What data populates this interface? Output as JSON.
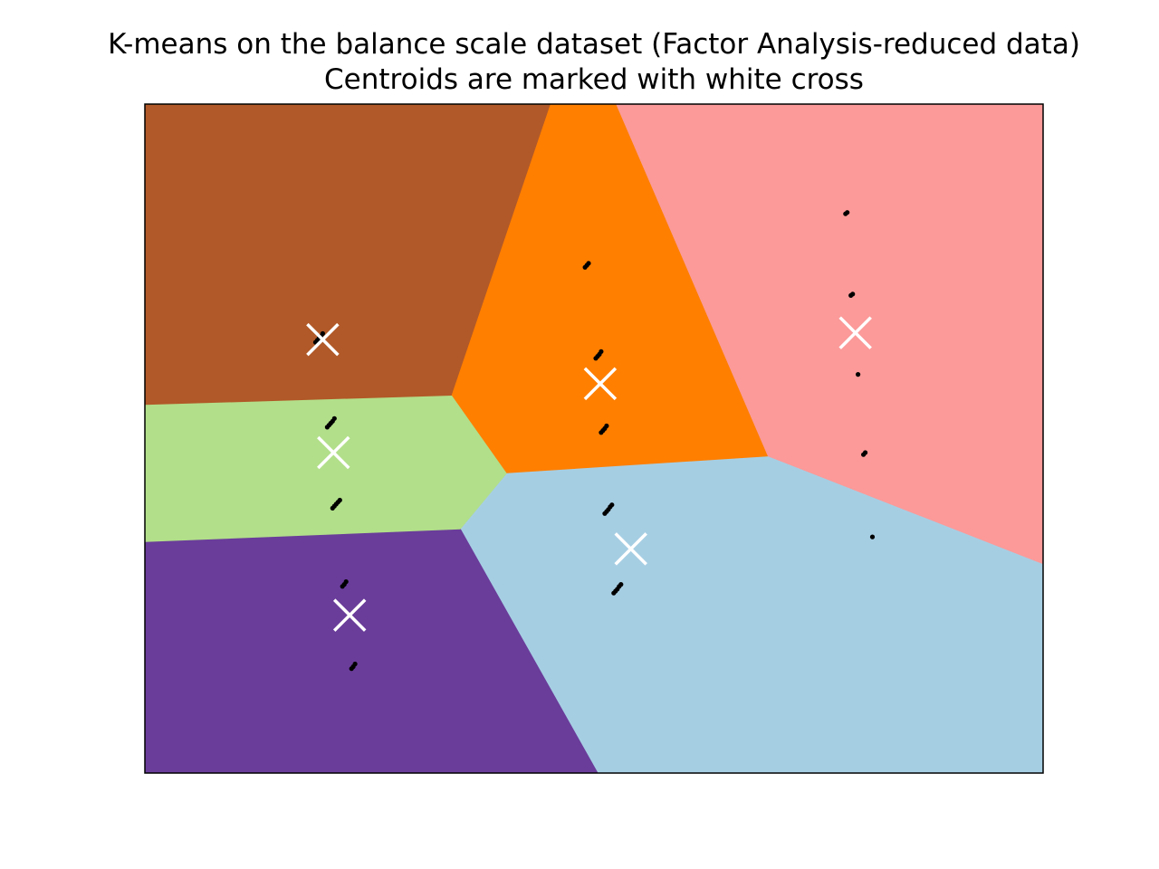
{
  "chart_data": {
    "type": "scatter",
    "title_lines": [
      "K-means on the balance scale dataset (Factor Analysis-reduced data)",
      "Centroids are marked with white cross"
    ],
    "xlabel": "",
    "ylabel": "",
    "xlim": [
      0,
      100
    ],
    "ylim": [
      0,
      100
    ],
    "ticks": "none",
    "grid": false,
    "legend": "none",
    "region_colors": {
      "brown": "#b15928",
      "orange": "#ff7f00",
      "pink": "#fb9a99",
      "green": "#b2df8a",
      "purple": "#6a3d9a",
      "light_blue": "#a6cee3"
    },
    "regions": [
      {
        "color": "light_blue",
        "polygon": [
          [
            35.1,
            36.5
          ],
          [
            40.3,
            44.9
          ],
          [
            69.4,
            47.4
          ],
          [
            100,
            31.3
          ],
          [
            100,
            0
          ],
          [
            50.4,
            0
          ]
        ]
      },
      {
        "color": "purple",
        "polygon": [
          [
            0,
            0
          ],
          [
            50.4,
            0
          ],
          [
            35.1,
            36.5
          ],
          [
            0,
            34.6
          ]
        ]
      },
      {
        "color": "green",
        "polygon": [
          [
            0,
            34.6
          ],
          [
            35.1,
            36.5
          ],
          [
            40.3,
            44.9
          ],
          [
            34.2,
            56.5
          ],
          [
            0,
            55.1
          ]
        ]
      },
      {
        "color": "brown",
        "polygon": [
          [
            0,
            55.1
          ],
          [
            34.2,
            56.5
          ],
          [
            45.2,
            100
          ],
          [
            0,
            100
          ]
        ]
      },
      {
        "color": "orange",
        "polygon": [
          [
            45.2,
            100
          ],
          [
            52.5,
            100
          ],
          [
            69.4,
            47.4
          ],
          [
            40.3,
            44.9
          ],
          [
            34.2,
            56.5
          ]
        ]
      },
      {
        "color": "pink",
        "polygon": [
          [
            52.5,
            100
          ],
          [
            100,
            100
          ],
          [
            100,
            31.3
          ],
          [
            69.4,
            47.4
          ]
        ]
      }
    ],
    "points": [
      [
        19.0,
        64.4
      ],
      [
        19.2,
        64.7
      ],
      [
        19.4,
        65.0
      ],
      [
        19.6,
        65.3
      ],
      [
        19.8,
        65.7
      ],
      [
        20.3,
        51.7
      ],
      [
        20.5,
        52.0
      ],
      [
        20.7,
        52.3
      ],
      [
        20.9,
        52.6
      ],
      [
        21.1,
        53.0
      ],
      [
        20.9,
        39.6
      ],
      [
        21.1,
        39.9
      ],
      [
        21.3,
        40.2
      ],
      [
        21.5,
        40.5
      ],
      [
        21.7,
        40.8
      ],
      [
        22.0,
        27.9
      ],
      [
        22.2,
        28.2
      ],
      [
        22.4,
        28.6
      ],
      [
        23.0,
        15.6
      ],
      [
        23.2,
        15.9
      ],
      [
        23.4,
        16.3
      ],
      [
        49.0,
        75.6
      ],
      [
        49.2,
        75.9
      ],
      [
        49.4,
        76.2
      ],
      [
        50.2,
        62.0
      ],
      [
        50.4,
        62.3
      ],
      [
        50.6,
        62.6
      ],
      [
        50.8,
        63.0
      ],
      [
        50.8,
        50.9
      ],
      [
        51.0,
        51.2
      ],
      [
        51.2,
        51.5
      ],
      [
        51.4,
        51.9
      ],
      [
        51.2,
        38.8
      ],
      [
        51.4,
        39.1
      ],
      [
        51.6,
        39.4
      ],
      [
        51.8,
        39.8
      ],
      [
        52.0,
        40.1
      ],
      [
        52.2,
        26.9
      ],
      [
        52.4,
        27.2
      ],
      [
        52.6,
        27.5
      ],
      [
        52.8,
        27.9
      ],
      [
        53.0,
        28.2
      ],
      [
        78.0,
        83.6
      ],
      [
        78.2,
        83.8
      ],
      [
        78.6,
        71.4
      ],
      [
        78.8,
        71.6
      ],
      [
        79.4,
        59.6
      ],
      [
        80.0,
        47.6
      ],
      [
        80.2,
        47.9
      ],
      [
        81.0,
        35.3
      ]
    ],
    "centroids": [
      [
        19.8,
        64.8
      ],
      [
        21.0,
        47.9
      ],
      [
        22.8,
        23.6
      ],
      [
        50.7,
        58.2
      ],
      [
        54.1,
        33.5
      ],
      [
        79.1,
        65.8
      ]
    ]
  }
}
